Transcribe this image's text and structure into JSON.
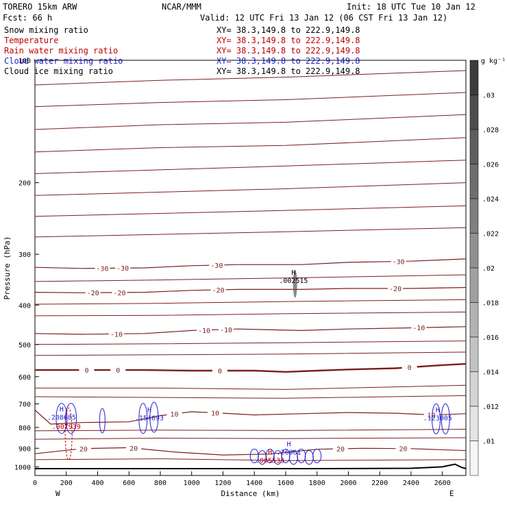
{
  "header": {
    "model": "TORERO  15km ARW",
    "center": "NCAR/MMM",
    "init": "Init: 18 UTC Tue 10 Jan 12",
    "fcst": "Fcst:    66 h",
    "valid": "Valid: 12 UTC Fri 13 Jan 12 (06 CST Fri 13 Jan 12)"
  },
  "fields": [
    {
      "name": "Snow mixing ratio",
      "color": "#000000",
      "xy": "XY=  38.3,149.8 to 222.9,149.8"
    },
    {
      "name": "Temperature",
      "color": "#c00000",
      "xy": "XY=  38.3,149.8 to 222.9,149.8"
    },
    {
      "name": "Rain water mixing ratio",
      "color": "#c00000",
      "xy": "XY=  38.3,149.8 to 222.9,149.8"
    },
    {
      "name": "Cloud water mixing ratio",
      "color": "#1f1fd0",
      "xy": "XY=  38.3,149.8 to 222.9,149.8"
    },
    {
      "name": "Cloud ice mixing ratio",
      "color": "#000000",
      "xy": "XY=  38.3,149.8 to 222.9,149.8"
    }
  ],
  "colorbar": {
    "unit": "g kg⁻¹",
    "labels": [
      ".03",
      ".028",
      ".026",
      ".024",
      ".022",
      ".02",
      ".018",
      ".016",
      ".014",
      ".012",
      ".01"
    ]
  },
  "chart_data": {
    "type": "cross-section",
    "xlabel": "Distance (km)",
    "ylabel": "Pressure (hPa)",
    "xlim": [
      0,
      2750
    ],
    "ylim": [
      1050,
      100
    ],
    "y_scale": "log",
    "x_ticks": [
      0,
      200,
      400,
      600,
      800,
      1000,
      1200,
      1400,
      1600,
      1800,
      2000,
      2200,
      2400,
      2600
    ],
    "y_ticks": [
      100,
      200,
      300,
      400,
      500,
      600,
      700,
      800,
      900,
      1000
    ],
    "x_end_labels": {
      "left": "W",
      "right": "E"
    },
    "temperature_contours": [
      {
        "value": -30,
        "labels": [
          {
            "x": 430,
            "t": "-30"
          },
          {
            "x": 560,
            "t": "-30"
          },
          {
            "x": 1160,
            "t": "-30"
          },
          {
            "x": 2320,
            "t": "-30"
          }
        ],
        "points": [
          [
            0,
            323
          ],
          [
            300,
            325
          ],
          [
            700,
            324
          ],
          [
            1000,
            320
          ],
          [
            1300,
            318
          ],
          [
            1700,
            318
          ],
          [
            2000,
            314
          ],
          [
            2400,
            312
          ],
          [
            2750,
            308
          ]
        ]
      },
      {
        "value": -20,
        "labels": [
          {
            "x": 370,
            "t": "-20"
          },
          {
            "x": 540,
            "t": "-20"
          },
          {
            "x": 1170,
            "t": "-20"
          },
          {
            "x": 2300,
            "t": "-20"
          }
        ],
        "points": [
          [
            0,
            372
          ],
          [
            300,
            373
          ],
          [
            700,
            372
          ],
          [
            1000,
            368
          ],
          [
            1300,
            366
          ],
          [
            1700,
            366
          ],
          [
            2000,
            364
          ],
          [
            2400,
            364
          ],
          [
            2750,
            362
          ]
        ]
      },
      {
        "value": -10,
        "labels": [
          {
            "x": 520,
            "t": "-10"
          },
          {
            "x": 1080,
            "t": "-10"
          },
          {
            "x": 1220,
            "t": "-10"
          },
          {
            "x": 2450,
            "t": "-10"
          }
        ],
        "points": [
          [
            0,
            470
          ],
          [
            300,
            472
          ],
          [
            700,
            470
          ],
          [
            1000,
            462
          ],
          [
            1300,
            458
          ],
          [
            1700,
            462
          ],
          [
            2000,
            458
          ],
          [
            2400,
            455
          ],
          [
            2750,
            452
          ]
        ]
      },
      {
        "value": 0,
        "labels": [
          {
            "x": 330,
            "t": "0"
          },
          {
            "x": 530,
            "t": "0"
          },
          {
            "x": 1180,
            "t": "0"
          },
          {
            "x": 2390,
            "t": "0"
          }
        ],
        "points": [
          [
            0,
            578
          ],
          [
            300,
            578
          ],
          [
            700,
            578
          ],
          [
            1000,
            580
          ],
          [
            1400,
            580
          ],
          [
            1600,
            584
          ],
          [
            1800,
            580
          ],
          [
            2000,
            576
          ],
          [
            2300,
            572
          ],
          [
            2600,
            562
          ],
          [
            2750,
            558
          ]
        ]
      },
      {
        "value": 10,
        "labels": [
          {
            "x": 890,
            "t": "10"
          },
          {
            "x": 1150,
            "t": "10"
          },
          {
            "x": 2530,
            "t": "10"
          }
        ],
        "points": [
          [
            0,
            725
          ],
          [
            100,
            785
          ],
          [
            300,
            778
          ],
          [
            600,
            775
          ],
          [
            800,
            748
          ],
          [
            1000,
            732
          ],
          [
            1200,
            738
          ],
          [
            1400,
            745
          ],
          [
            1700,
            740
          ],
          [
            2000,
            735
          ],
          [
            2300,
            738
          ],
          [
            2550,
            745
          ],
          [
            2750,
            740
          ]
        ]
      },
      {
        "value": 20,
        "labels": [
          {
            "x": 310,
            "t": "20"
          },
          {
            "x": 630,
            "t": "20"
          },
          {
            "x": 1950,
            "t": "20"
          },
          {
            "x": 2350,
            "t": "20"
          }
        ],
        "points": [
          [
            0,
            928
          ],
          [
            300,
            902
          ],
          [
            600,
            897
          ],
          [
            900,
            920
          ],
          [
            1200,
            935
          ],
          [
            1500,
            930
          ],
          [
            1800,
            905
          ],
          [
            2100,
            900
          ],
          [
            2400,
            902
          ],
          [
            2750,
            912
          ]
        ]
      }
    ],
    "extra_isotherms_unlabeled": [
      [
        [
          0,
          115
        ],
        [
          800,
          112
        ],
        [
          1600,
          110
        ],
        [
          2750,
          106
        ]
      ],
      [
        [
          0,
          130
        ],
        [
          800,
          127
        ],
        [
          1600,
          125
        ],
        [
          2750,
          120
        ]
      ],
      [
        [
          0,
          148
        ],
        [
          800,
          144
        ],
        [
          1600,
          142
        ],
        [
          2750,
          136
        ]
      ],
      [
        [
          0,
          168
        ],
        [
          800,
          164
        ],
        [
          1600,
          162
        ],
        [
          2750,
          155
        ]
      ],
      [
        [
          0,
          190
        ],
        [
          800,
          186
        ],
        [
          1600,
          182
        ],
        [
          2750,
          176
        ]
      ],
      [
        [
          0,
          215
        ],
        [
          800,
          211
        ],
        [
          1600,
          207
        ],
        [
          2750,
          200
        ]
      ],
      [
        [
          0,
          242
        ],
        [
          800,
          238
        ],
        [
          1600,
          234
        ],
        [
          2750,
          228
        ]
      ],
      [
        [
          0,
          272
        ],
        [
          800,
          268
        ],
        [
          1600,
          264
        ],
        [
          2750,
          258
        ]
      ],
      [
        [
          0,
          350
        ],
        [
          800,
          347
        ],
        [
          1600,
          343
        ],
        [
          2750,
          337
        ]
      ],
      [
        [
          0,
          398
        ],
        [
          800,
          396
        ],
        [
          1600,
          392
        ],
        [
          2750,
          388
        ]
      ],
      [
        [
          0,
          425
        ],
        [
          800,
          424
        ],
        [
          1600,
          420
        ],
        [
          2750,
          416
        ]
      ],
      [
        [
          0,
          500
        ],
        [
          800,
          498
        ],
        [
          1600,
          495
        ],
        [
          2750,
          490
        ]
      ],
      [
        [
          0,
          532
        ],
        [
          800,
          530
        ],
        [
          1600,
          528
        ],
        [
          2750,
          522
        ]
      ],
      [
        [
          0,
          640
        ],
        [
          800,
          640
        ],
        [
          1600,
          645
        ],
        [
          2750,
          630
        ]
      ],
      [
        [
          0,
          672
        ],
        [
          800,
          675
        ],
        [
          1600,
          678
        ],
        [
          2750,
          668
        ]
      ],
      [
        [
          0,
          815
        ],
        [
          800,
          812
        ],
        [
          1600,
          814
        ],
        [
          2750,
          808
        ]
      ],
      [
        [
          0,
          855
        ],
        [
          800,
          850
        ],
        [
          1600,
          852
        ],
        [
          2750,
          848
        ]
      ],
      [
        [
          0,
          960
        ],
        [
          800,
          955
        ],
        [
          1600,
          965
        ],
        [
          2750,
          960
        ]
      ]
    ],
    "ground_pressure": [
      [
        0,
        1010
      ],
      [
        1000,
        1010
      ],
      [
        1800,
        1010
      ],
      [
        2400,
        1008
      ],
      [
        2600,
        1000
      ],
      [
        2680,
        985
      ],
      [
        2720,
        1002
      ],
      [
        2750,
        1010
      ]
    ],
    "maxima": [
      {
        "field": "snow",
        "label": "H",
        "value": ".002515",
        "x": 1650,
        "p": 350,
        "color": "#000000"
      },
      {
        "field": "cloud_water",
        "label": "H",
        "value": ".208685",
        "x": 170,
        "p": 760,
        "color": "#1f1fd0"
      },
      {
        "field": "rain",
        "label": "",
        "value": ".007939",
        "x": 200,
        "p": 800,
        "color": "#c00000"
      },
      {
        "field": "cloud_water",
        "label": "H",
        "value": ".154693",
        "x": 730,
        "p": 763,
        "color": "#1f1fd0"
      },
      {
        "field": "cloud_water",
        "label": "H",
        "value": ".123005",
        "x": 2570,
        "p": 762,
        "color": "#1f1fd0"
      },
      {
        "field": "cloud_water",
        "label": "H",
        "value": ".26061",
        "x": 1620,
        "p": 925,
        "color": "#1f1fd0"
      },
      {
        "field": "rain",
        "label": "H",
        "value": ".005533",
        "x": 1500,
        "p": 970,
        "color": "#c00000"
      }
    ],
    "grid": false,
    "legend": "top-left"
  }
}
